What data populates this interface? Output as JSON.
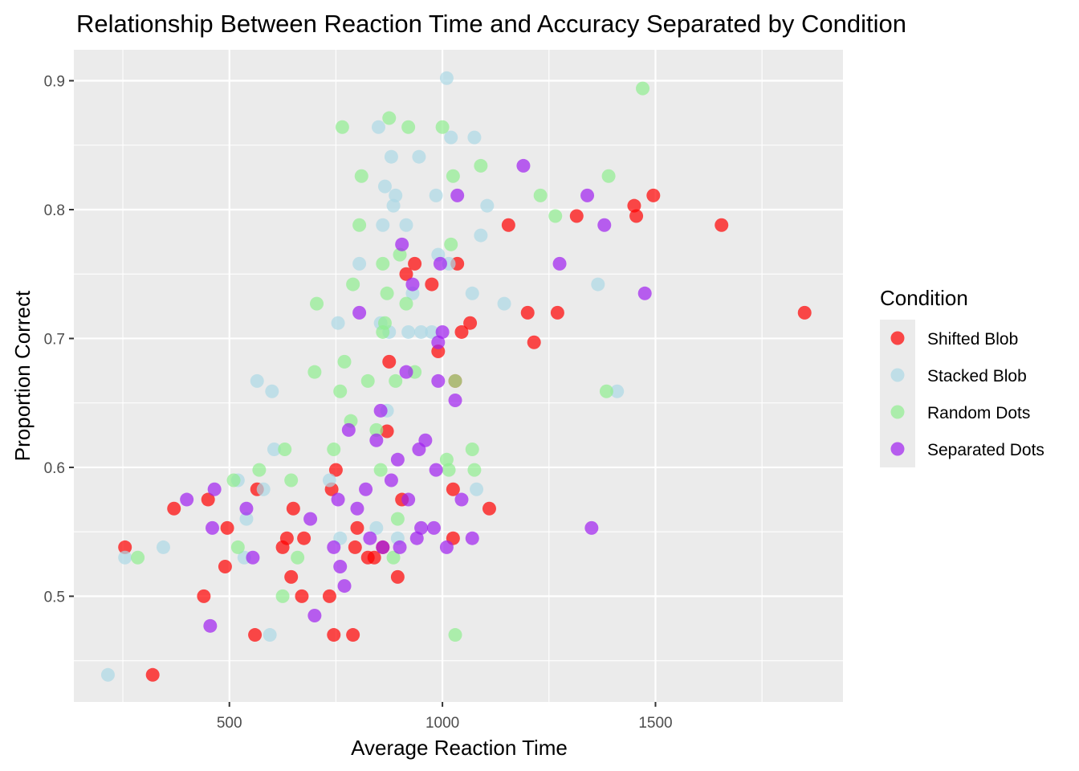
{
  "chart_data": {
    "type": "scatter",
    "title": "Relationship Between Reaction Time and Accuracy Separated by Condition",
    "xlabel": "Average Reaction Time",
    "ylabel": "Proportion Correct",
    "xlim": [
      135,
      1940
    ],
    "ylim": [
      0.418,
      0.924
    ],
    "x_ticks": [
      500,
      1000,
      1500
    ],
    "y_ticks": [
      0.5,
      0.6,
      0.7,
      0.8,
      0.9
    ],
    "x_minor_ticks": [
      250,
      750,
      1250,
      1750
    ],
    "y_minor_ticks": [
      0.45,
      0.55,
      0.65,
      0.75,
      0.85
    ],
    "grid": true,
    "panel_background": "#ebebeb",
    "grid_color": "#ffffff",
    "legend": {
      "title": "Condition",
      "position": "right"
    },
    "point_alpha": 0.7,
    "series": [
      {
        "name": "Shifted Blob",
        "color": "#ff0000",
        "points": [
          [
            255,
            0.538
          ],
          [
            320,
            0.439
          ],
          [
            370,
            0.568
          ],
          [
            440,
            0.5
          ],
          [
            450,
            0.575
          ],
          [
            490,
            0.523
          ],
          [
            495,
            0.553
          ],
          [
            560,
            0.47
          ],
          [
            565,
            0.583
          ],
          [
            625,
            0.538
          ],
          [
            635,
            0.545
          ],
          [
            645,
            0.515
          ],
          [
            650,
            0.568
          ],
          [
            670,
            0.5
          ],
          [
            675,
            0.545
          ],
          [
            735,
            0.5
          ],
          [
            740,
            0.583
          ],
          [
            745,
            0.47
          ],
          [
            750,
            0.598
          ],
          [
            790,
            0.47
          ],
          [
            795,
            0.538
          ],
          [
            800,
            0.553
          ],
          [
            825,
            0.53
          ],
          [
            840,
            0.53
          ],
          [
            860,
            0.538
          ],
          [
            870,
            0.628
          ],
          [
            875,
            0.682
          ],
          [
            895,
            0.515
          ],
          [
            905,
            0.575
          ],
          [
            915,
            0.75
          ],
          [
            935,
            0.758
          ],
          [
            975,
            0.742
          ],
          [
            990,
            0.69
          ],
          [
            1025,
            0.583
          ],
          [
            1025,
            0.545
          ],
          [
            1030,
            0.667
          ],
          [
            1035,
            0.758
          ],
          [
            1045,
            0.705
          ],
          [
            1065,
            0.712
          ],
          [
            1110,
            0.568
          ],
          [
            1155,
            0.788
          ],
          [
            1200,
            0.72
          ],
          [
            1215,
            0.697
          ],
          [
            1270,
            0.72
          ],
          [
            1315,
            0.795
          ],
          [
            1450,
            0.803
          ],
          [
            1455,
            0.795
          ],
          [
            1495,
            0.811
          ],
          [
            1655,
            0.788
          ],
          [
            1850,
            0.72
          ]
        ]
      },
      {
        "name": "Stacked Blob",
        "color": "#add8e6",
        "points": [
          [
            215,
            0.439
          ],
          [
            255,
            0.53
          ],
          [
            345,
            0.538
          ],
          [
            520,
            0.59
          ],
          [
            535,
            0.53
          ],
          [
            540,
            0.56
          ],
          [
            565,
            0.667
          ],
          [
            580,
            0.583
          ],
          [
            595,
            0.47
          ],
          [
            600,
            0.659
          ],
          [
            605,
            0.614
          ],
          [
            735,
            0.59
          ],
          [
            755,
            0.712
          ],
          [
            760,
            0.545
          ],
          [
            805,
            0.758
          ],
          [
            845,
            0.553
          ],
          [
            850,
            0.864
          ],
          [
            855,
            0.712
          ],
          [
            860,
            0.788
          ],
          [
            865,
            0.818
          ],
          [
            870,
            0.644
          ],
          [
            875,
            0.705
          ],
          [
            880,
            0.841
          ],
          [
            885,
            0.803
          ],
          [
            890,
            0.811
          ],
          [
            895,
            0.545
          ],
          [
            915,
            0.788
          ],
          [
            920,
            0.705
          ],
          [
            930,
            0.735
          ],
          [
            945,
            0.841
          ],
          [
            950,
            0.705
          ],
          [
            975,
            0.705
          ],
          [
            985,
            0.811
          ],
          [
            990,
            0.765
          ],
          [
            1010,
            0.902
          ],
          [
            1015,
            0.758
          ],
          [
            1020,
            0.856
          ],
          [
            1070,
            0.735
          ],
          [
            1075,
            0.856
          ],
          [
            1080,
            0.583
          ],
          [
            1090,
            0.78
          ],
          [
            1105,
            0.803
          ],
          [
            1145,
            0.727
          ],
          [
            1365,
            0.742
          ],
          [
            1410,
            0.659
          ]
        ]
      },
      {
        "name": "Random Dots",
        "color": "#90ee90",
        "points": [
          [
            285,
            0.53
          ],
          [
            510,
            0.59
          ],
          [
            520,
            0.538
          ],
          [
            570,
            0.598
          ],
          [
            625,
            0.5
          ],
          [
            630,
            0.614
          ],
          [
            645,
            0.59
          ],
          [
            660,
            0.53
          ],
          [
            700,
            0.674
          ],
          [
            705,
            0.727
          ],
          [
            745,
            0.614
          ],
          [
            760,
            0.659
          ],
          [
            765,
            0.864
          ],
          [
            770,
            0.682
          ],
          [
            785,
            0.636
          ],
          [
            790,
            0.742
          ],
          [
            805,
            0.788
          ],
          [
            810,
            0.826
          ],
          [
            825,
            0.667
          ],
          [
            845,
            0.629
          ],
          [
            855,
            0.598
          ],
          [
            860,
            0.705
          ],
          [
            865,
            0.712
          ],
          [
            870,
            0.735
          ],
          [
            875,
            0.871
          ],
          [
            885,
            0.53
          ],
          [
            890,
            0.667
          ],
          [
            895,
            0.56
          ],
          [
            900,
            0.765
          ],
          [
            915,
            0.727
          ],
          [
            920,
            0.864
          ],
          [
            935,
            0.674
          ],
          [
            1000,
            0.864
          ],
          [
            1010,
            0.606
          ],
          [
            1015,
            0.598
          ],
          [
            1020,
            0.773
          ],
          [
            1025,
            0.826
          ],
          [
            1030,
            0.667
          ],
          [
            1030,
            0.47
          ],
          [
            1070,
            0.614
          ],
          [
            1075,
            0.598
          ],
          [
            1090,
            0.834
          ],
          [
            1230,
            0.811
          ],
          [
            1265,
            0.795
          ],
          [
            1385,
            0.659
          ],
          [
            1390,
            0.826
          ],
          [
            1470,
            0.894
          ],
          [
            860,
            0.758
          ]
        ]
      },
      {
        "name": "Separated Dots",
        "color": "#a020f0",
        "points": [
          [
            400,
            0.575
          ],
          [
            455,
            0.477
          ],
          [
            460,
            0.553
          ],
          [
            465,
            0.583
          ],
          [
            540,
            0.568
          ],
          [
            555,
            0.53
          ],
          [
            690,
            0.56
          ],
          [
            700,
            0.485
          ],
          [
            745,
            0.538
          ],
          [
            755,
            0.575
          ],
          [
            760,
            0.523
          ],
          [
            770,
            0.508
          ],
          [
            780,
            0.629
          ],
          [
            800,
            0.568
          ],
          [
            805,
            0.72
          ],
          [
            820,
            0.583
          ],
          [
            830,
            0.545
          ],
          [
            845,
            0.621
          ],
          [
            855,
            0.644
          ],
          [
            860,
            0.538
          ],
          [
            880,
            0.59
          ],
          [
            895,
            0.606
          ],
          [
            900,
            0.538
          ],
          [
            905,
            0.773
          ],
          [
            915,
            0.674
          ],
          [
            920,
            0.575
          ],
          [
            930,
            0.742
          ],
          [
            940,
            0.545
          ],
          [
            945,
            0.614
          ],
          [
            950,
            0.553
          ],
          [
            960,
            0.621
          ],
          [
            980,
            0.553
          ],
          [
            985,
            0.598
          ],
          [
            990,
            0.667
          ],
          [
            995,
            0.758
          ],
          [
            1000,
            0.705
          ],
          [
            990,
            0.697
          ],
          [
            1010,
            0.538
          ],
          [
            1030,
            0.652
          ],
          [
            1035,
            0.811
          ],
          [
            1045,
            0.575
          ],
          [
            1070,
            0.545
          ],
          [
            1190,
            0.834
          ],
          [
            1275,
            0.758
          ],
          [
            1340,
            0.811
          ],
          [
            1350,
            0.553
          ],
          [
            1380,
            0.788
          ],
          [
            1475,
            0.735
          ]
        ]
      }
    ]
  }
}
